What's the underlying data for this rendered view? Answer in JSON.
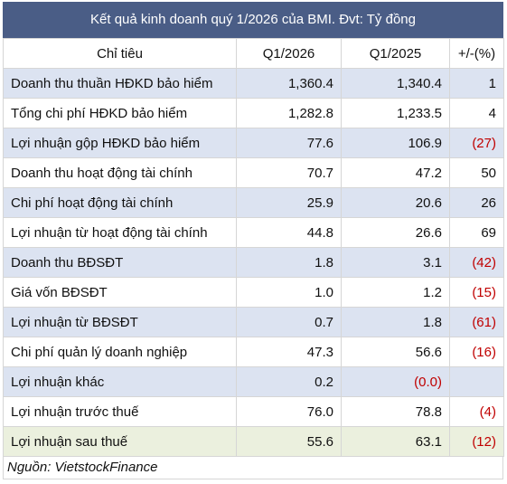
{
  "header": {
    "title": "Kết quả kinh doanh quý 1/2026 của BMI. Đvt: Tỷ đồng"
  },
  "table": {
    "columns": [
      "Chỉ tiêu",
      "Q1/2026",
      "Q1/2025",
      "+/-(%)"
    ],
    "rows": [
      [
        "Doanh thu thuần HĐKD bảo hiểm",
        "1,360.4",
        "1,340.4",
        "1"
      ],
      [
        "Tổng chi phí HĐKD bảo hiểm",
        "1,282.8",
        "1,233.5",
        "4"
      ],
      [
        "Lợi nhuận gộp HĐKD bảo hiểm",
        "77.6",
        "106.9",
        "(27)"
      ],
      [
        "Doanh thu hoạt động tài chính",
        "70.7",
        "47.2",
        "50"
      ],
      [
        "Chi phí hoạt động tài chính",
        "25.9",
        "20.6",
        "26"
      ],
      [
        "Lợi nhuận từ hoạt động tài chính",
        "44.8",
        "26.6",
        "69"
      ],
      [
        "Doanh thu BĐSĐT",
        "1.8",
        "3.1",
        "(42)"
      ],
      [
        "Giá vốn BĐSĐT",
        "1.0",
        "1.2",
        "(15)"
      ],
      [
        "Lợi nhuận từ BĐSĐT",
        "0.7",
        "1.8",
        "(61)"
      ],
      [
        "Chi phí quản lý doanh nghiệp",
        "47.3",
        "56.6",
        "(16)"
      ],
      [
        "Lợi nhuận khác",
        "0.2",
        "(0.0)",
        null
      ],
      [
        "Lợi nhuận trước thuế",
        "76.0",
        "78.8",
        "(4)"
      ],
      [
        "Lợi nhuận sau thuế",
        "55.6",
        "63.1",
        "(12)"
      ]
    ]
  },
  "footer": {
    "source": "Nguồn: VietstockFinance"
  }
}
